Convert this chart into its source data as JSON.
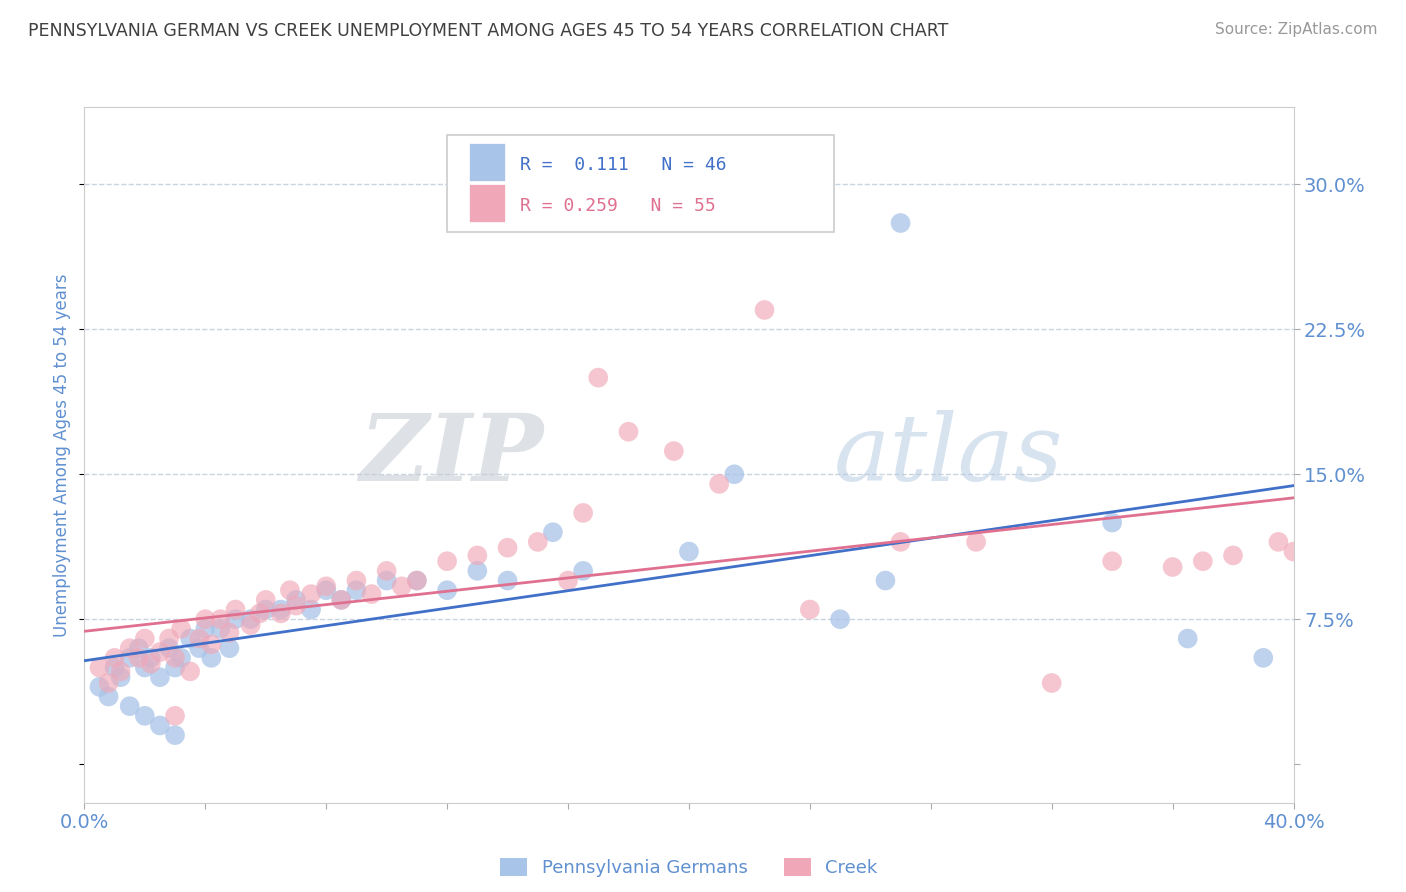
{
  "title": "PENNSYLVANIA GERMAN VS CREEK UNEMPLOYMENT AMONG AGES 45 TO 54 YEARS CORRELATION CHART",
  "source": "Source: ZipAtlas.com",
  "ylabel": "Unemployment Among Ages 45 to 54 years",
  "xlim": [
    0.0,
    0.4
  ],
  "ylim": [
    -0.02,
    0.34
  ],
  "yticks": [
    0.0,
    0.075,
    0.15,
    0.225,
    0.3
  ],
  "ytick_labels": [
    "",
    "7.5%",
    "15.0%",
    "22.5%",
    "30.0%"
  ],
  "legend_r_blue": "0.111",
  "legend_n_blue": "46",
  "legend_r_pink": "0.259",
  "legend_n_pink": "55",
  "blue_color": "#a8c4e8",
  "pink_color": "#f0a8b8",
  "blue_line_color": "#4070c8",
  "pink_line_color": "#e07090",
  "tick_color": "#6090d0",
  "grid_color": "#c8d4e0",
  "watermark_zip": "ZIP",
  "watermark_atlas": "atlas",
  "blue_x": [
    0.005,
    0.008,
    0.01,
    0.012,
    0.015,
    0.015,
    0.018,
    0.02,
    0.02,
    0.022,
    0.025,
    0.025,
    0.028,
    0.03,
    0.03,
    0.032,
    0.035,
    0.038,
    0.04,
    0.042,
    0.045,
    0.048,
    0.05,
    0.055,
    0.06,
    0.065,
    0.07,
    0.075,
    0.08,
    0.085,
    0.09,
    0.1,
    0.11,
    0.12,
    0.13,
    0.14,
    0.155,
    0.165,
    0.2,
    0.215,
    0.25,
    0.265,
    0.27,
    0.34,
    0.365,
    0.39
  ],
  "blue_y": [
    0.04,
    0.035,
    0.05,
    0.045,
    0.055,
    0.03,
    0.06,
    0.05,
    0.025,
    0.055,
    0.045,
    0.02,
    0.06,
    0.05,
    0.015,
    0.055,
    0.065,
    0.06,
    0.07,
    0.055,
    0.07,
    0.06,
    0.075,
    0.075,
    0.08,
    0.08,
    0.085,
    0.08,
    0.09,
    0.085,
    0.09,
    0.095,
    0.095,
    0.09,
    0.1,
    0.095,
    0.12,
    0.1,
    0.11,
    0.15,
    0.075,
    0.095,
    0.28,
    0.125,
    0.065,
    0.055
  ],
  "pink_x": [
    0.005,
    0.008,
    0.01,
    0.012,
    0.015,
    0.018,
    0.02,
    0.022,
    0.025,
    0.028,
    0.03,
    0.03,
    0.032,
    0.035,
    0.038,
    0.04,
    0.042,
    0.045,
    0.048,
    0.05,
    0.055,
    0.058,
    0.06,
    0.065,
    0.068,
    0.07,
    0.075,
    0.08,
    0.085,
    0.09,
    0.095,
    0.1,
    0.105,
    0.11,
    0.12,
    0.13,
    0.14,
    0.15,
    0.16,
    0.165,
    0.17,
    0.18,
    0.195,
    0.21,
    0.225,
    0.24,
    0.27,
    0.295,
    0.32,
    0.34,
    0.36,
    0.37,
    0.38,
    0.395,
    0.4
  ],
  "pink_y": [
    0.05,
    0.042,
    0.055,
    0.048,
    0.06,
    0.055,
    0.065,
    0.052,
    0.058,
    0.065,
    0.055,
    0.025,
    0.07,
    0.048,
    0.065,
    0.075,
    0.062,
    0.075,
    0.068,
    0.08,
    0.072,
    0.078,
    0.085,
    0.078,
    0.09,
    0.082,
    0.088,
    0.092,
    0.085,
    0.095,
    0.088,
    0.1,
    0.092,
    0.095,
    0.105,
    0.108,
    0.112,
    0.115,
    0.095,
    0.13,
    0.2,
    0.172,
    0.162,
    0.145,
    0.235,
    0.08,
    0.115,
    0.115,
    0.042,
    0.105,
    0.102,
    0.105,
    0.108,
    0.115,
    0.11
  ]
}
